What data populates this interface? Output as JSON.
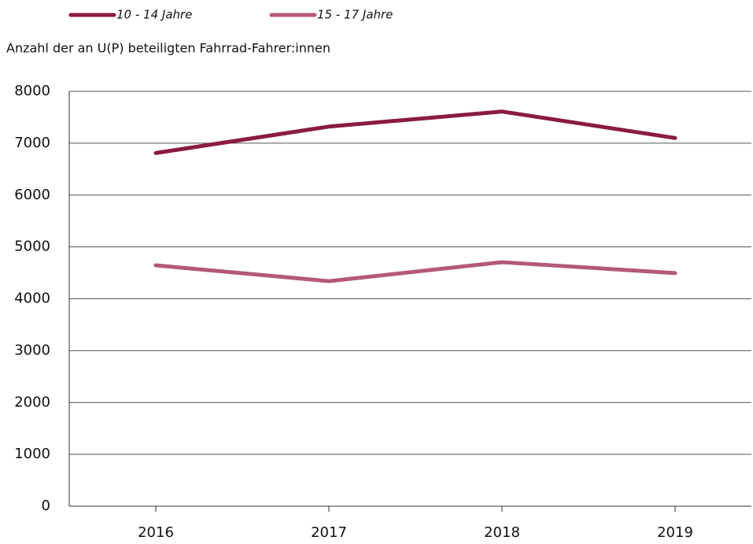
{
  "chart_data": {
    "type": "line",
    "y_axis_label": "Anzahl der an U(P) beteiligten Fahrrad-Fahrer:innen",
    "categories": [
      "2016",
      "2017",
      "2018",
      "2019"
    ],
    "series": [
      {
        "name": "10 - 14 Jahre",
        "color": "#8b1a45",
        "values": [
          6810,
          7320,
          7610,
          7100
        ]
      },
      {
        "name": "15 - 17 Jahre",
        "color": "#b45a75",
        "values": [
          4645,
          4340,
          4705,
          4495
        ]
      }
    ],
    "ylim": [
      0,
      8000
    ],
    "yticks": [
      0,
      1000,
      2000,
      3000,
      4000,
      5000,
      6000,
      7000,
      8000
    ],
    "grid": true,
    "legend": "top"
  }
}
